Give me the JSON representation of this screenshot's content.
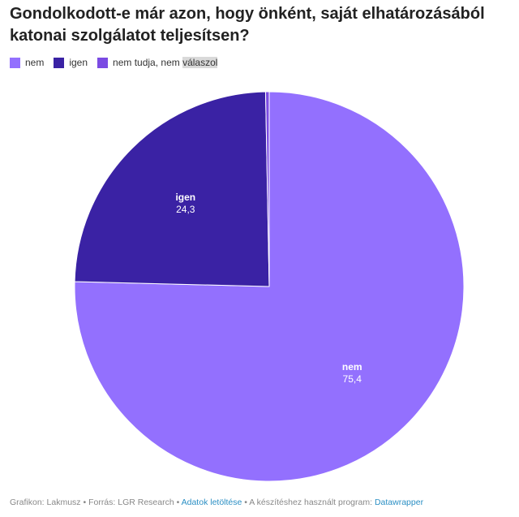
{
  "title": "Gondolkodott-e már azon, hogy önként, saját elhatározásából katonai szolgálatot teljesítsen?",
  "legend": [
    {
      "label": "nem",
      "color": "#9370fe"
    },
    {
      "label": "igen",
      "color": "#3a22a4"
    },
    {
      "label_pre": "nem tudja, nem ",
      "label_hl": "válaszol",
      "color": "#7b4be3"
    }
  ],
  "chart_data": {
    "type": "pie",
    "title": "Gondolkodott-e már azon, hogy önként, saját elhatározásából katonai szolgálatot teljesítsen?",
    "slices": [
      {
        "label": "nem",
        "value": 75.4,
        "display": "75,4",
        "color": "#9370fe",
        "show_label": true
      },
      {
        "label": "igen",
        "value": 24.3,
        "display": "24,3",
        "color": "#3a22a4",
        "show_label": true
      },
      {
        "label": "nem tudja, nem válaszol",
        "value": 0.3,
        "display": "",
        "color": "#7b4be3",
        "show_label": false
      }
    ],
    "start": "12 o'clock",
    "direction": "clockwise"
  },
  "footer": {
    "credit": "Grafikon: Lakmusz",
    "sep": " • ",
    "source": "Forrás: LGR Research",
    "download": "Adatok letöltése",
    "tool_prefix": "A készítéshez használt program: ",
    "tool": "Datawrapper"
  }
}
